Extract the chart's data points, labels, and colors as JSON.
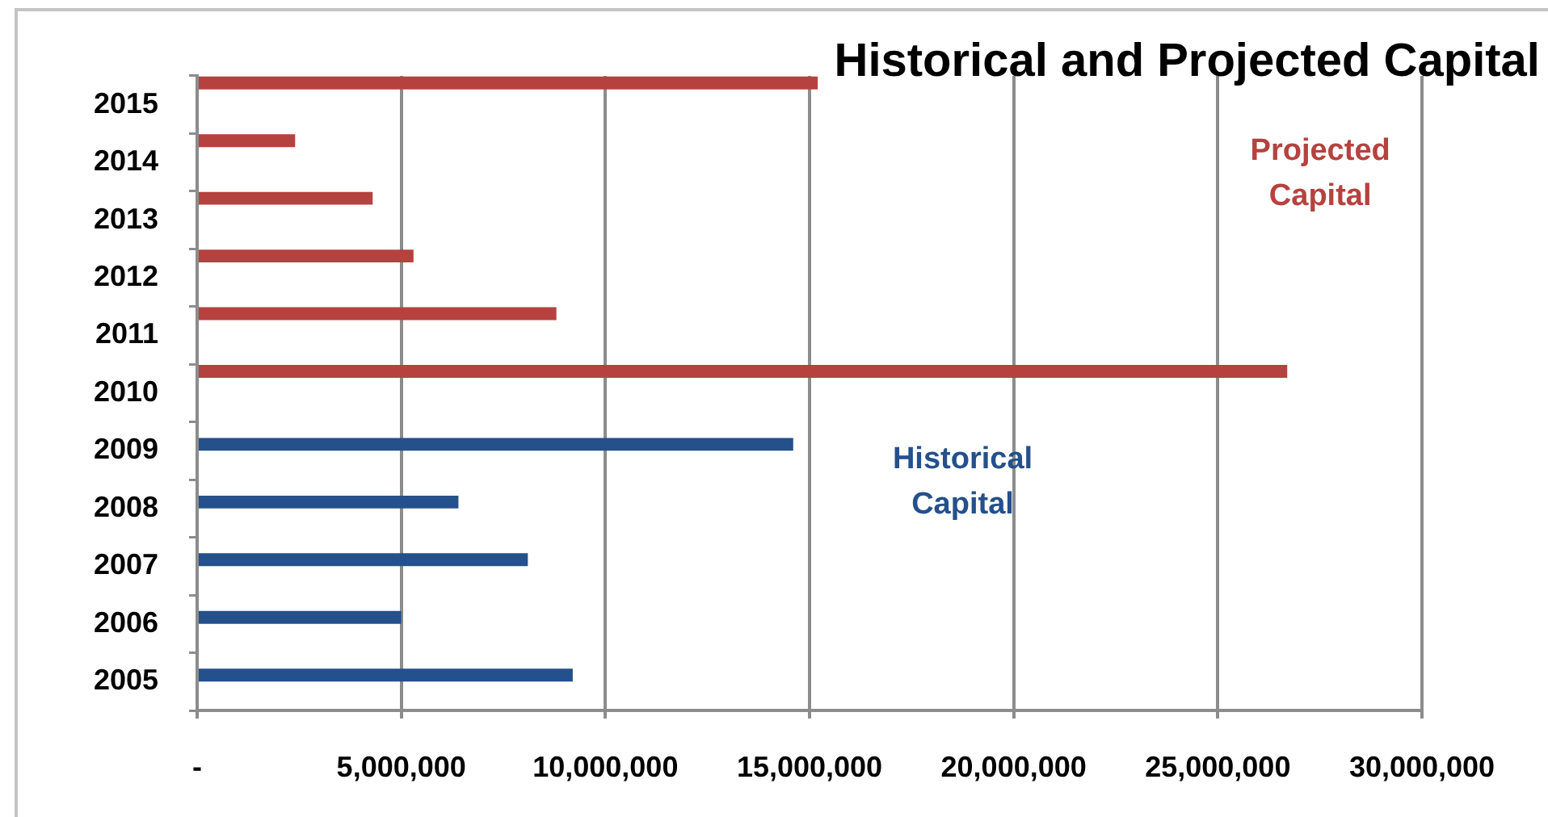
{
  "chart_data": {
    "type": "bar",
    "orientation": "horizontal",
    "title": "Historical and Projected Capital",
    "categories": [
      "2015",
      "2014",
      "2013",
      "2012",
      "2011",
      "2010",
      "2009",
      "2008",
      "2007",
      "2006",
      "2005"
    ],
    "series": [
      {
        "name": "Projected Capital",
        "color": "#b5423f",
        "values": [
          15200000,
          2400000,
          4300000,
          5300000,
          8800000,
          26700000,
          null,
          null,
          null,
          null,
          null
        ]
      },
      {
        "name": "Historical Capital",
        "color": "#24508c",
        "values": [
          null,
          null,
          null,
          null,
          null,
          null,
          14600000,
          6400000,
          8100000,
          5000000,
          9200000
        ]
      }
    ],
    "xlim": [
      0,
      30000000
    ],
    "xticks": [
      {
        "value": 0,
        "label": "-"
      },
      {
        "value": 5000000,
        "label": "5,000,000"
      },
      {
        "value": 10000000,
        "label": "10,000,000"
      },
      {
        "value": 15000000,
        "label": "15,000,000"
      },
      {
        "value": 20000000,
        "label": "20,000,000"
      },
      {
        "value": 25000000,
        "label": "25,000,000"
      },
      {
        "value": 30000000,
        "label": "30,000,000"
      }
    ],
    "grid": "x",
    "legend": false
  }
}
